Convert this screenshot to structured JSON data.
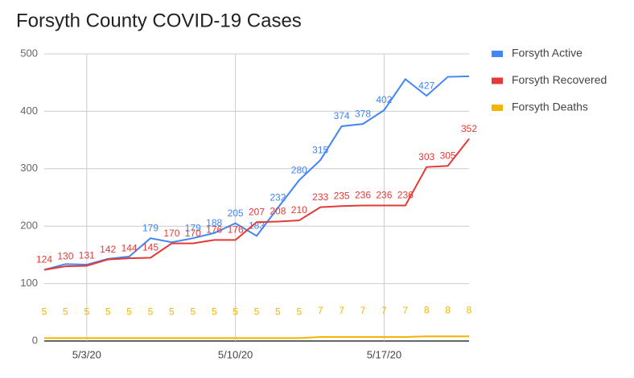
{
  "chart_data": {
    "type": "line",
    "title": "Forsyth County COVID-19 Cases",
    "categories": [
      null,
      null,
      "5/3/20",
      null,
      null,
      null,
      null,
      null,
      null,
      "5/10/20",
      null,
      null,
      null,
      null,
      null,
      null,
      "5/17/20",
      null,
      null,
      null,
      null
    ],
    "series": [
      {
        "name": "Forsyth Active",
        "color": "#4285f4",
        "values": [
          124,
          134,
          133,
          143,
          147,
          179,
          172,
          179,
          188,
          205,
          183,
          232,
          280,
          315,
          374,
          378,
          402,
          456,
          427,
          460,
          461
        ],
        "value_labels": [
          null,
          null,
          null,
          null,
          null,
          "179",
          null,
          "179",
          "188",
          "205",
          "183",
          "232",
          "280",
          "315",
          "374",
          "378",
          "402",
          null,
          "427",
          null,
          null
        ]
      },
      {
        "name": "Forsyth Recovered",
        "color": "#e53935",
        "values": [
          124,
          130,
          131,
          142,
          144,
          145,
          170,
          170,
          176,
          176,
          207,
          208,
          210,
          233,
          235,
          236,
          236,
          236,
          303,
          305,
          352
        ]
      },
      {
        "name": "Forsyth Deaths",
        "color": "#f4b400",
        "values": [
          5,
          5,
          5,
          5,
          5,
          5,
          5,
          5,
          5,
          5,
          5,
          5,
          5,
          7,
          7,
          7,
          7,
          7,
          8,
          8,
          8
        ]
      }
    ],
    "ylim": [
      0,
      500
    ],
    "yticks": [
      0,
      100,
      200,
      300,
      400,
      500
    ],
    "grid": true,
    "legend": "right"
  }
}
